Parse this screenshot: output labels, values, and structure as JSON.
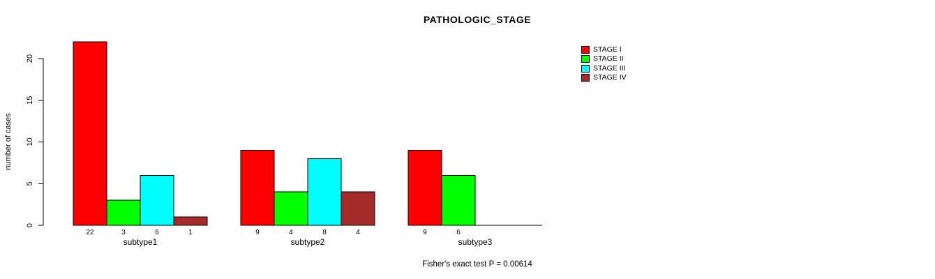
{
  "title": "PATHOLOGIC_STAGE",
  "y_axis": {
    "label": "number of cases",
    "ticks": [
      0,
      5,
      10,
      15,
      20
    ]
  },
  "footer": "Fisher's exact test P = 0.00614",
  "legend": {
    "items": [
      {
        "label": "STAGE I",
        "color": "#FF0000"
      },
      {
        "label": "STAGE II",
        "color": "#00FF00"
      },
      {
        "label": "STAGE III",
        "color": "#00FFFF"
      },
      {
        "label": "STAGE IV",
        "color": "#A52A2A"
      }
    ]
  },
  "chart_data": {
    "type": "bar",
    "title": "PATHOLOGIC_STAGE",
    "xlabel": "",
    "ylabel": "number of cases",
    "categories": [
      "subtype1",
      "subtype2",
      "subtype3"
    ],
    "series": [
      {
        "name": "STAGE I",
        "color": "#FF0000",
        "values": [
          22,
          9,
          9
        ]
      },
      {
        "name": "STAGE II",
        "color": "#00FF00",
        "values": [
          3,
          4,
          6
        ]
      },
      {
        "name": "STAGE III",
        "color": "#00FFFF",
        "values": [
          6,
          8,
          0
        ]
      },
      {
        "name": "STAGE IV",
        "color": "#A52A2A",
        "values": [
          1,
          4,
          0
        ]
      }
    ],
    "yticks": [
      0,
      5,
      10,
      15,
      20
    ],
    "ylim": [
      0,
      22
    ],
    "grid": false,
    "bar_value_labels_shown": true,
    "zero_value_labels_hidden": true,
    "legend_position": "right",
    "annotation": "Fisher's exact test P = 0.00614"
  }
}
